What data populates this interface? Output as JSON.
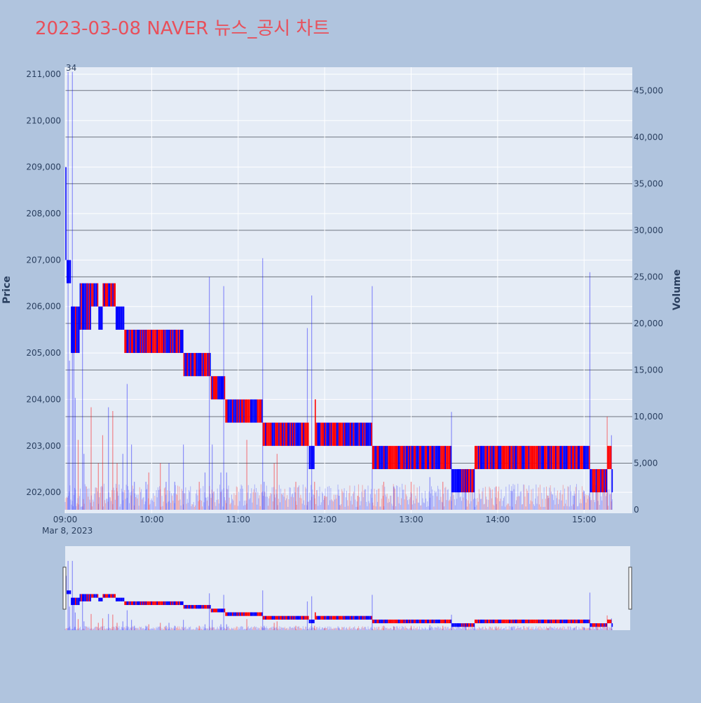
{
  "title": "2023-03-08 NAVER 뉴스_공시 차트",
  "colors": {
    "background": "#b0c4de",
    "plot_bg": "#e5ecf6",
    "title": "#e8505b",
    "up": "#ff0000",
    "down": "#0000ff",
    "axis_text": "#2a3f5f"
  },
  "chart_data": {
    "type": "candlestick",
    "xlabel": "",
    "ylabel": "Price",
    "y2label": "Volume",
    "date_label": "Mar 8, 2023",
    "x_ticks": [
      "09:00",
      "10:00",
      "11:00",
      "12:00",
      "13:00",
      "14:00",
      "15:00"
    ],
    "x_range": [
      "09:00",
      "15:31"
    ],
    "y_ticks": [
      202000,
      203000,
      204000,
      205000,
      206000,
      207000,
      208000,
      209000,
      210000,
      211000
    ],
    "y_tick_labels": [
      "202,000",
      "203,000",
      "204,000",
      "205,000",
      "206,000",
      "207,000",
      "208,000",
      "209,000",
      "210,000",
      "211,000"
    ],
    "ylim": [
      201550,
      211150
    ],
    "y2_ticks": [
      0,
      5000,
      10000,
      15000,
      20000,
      25000,
      30000,
      35000,
      40000,
      45000
    ],
    "y2_tick_labels": [
      "0",
      "5,000",
      "10,000",
      "15,000",
      "20,000",
      "25,000",
      "30,000",
      "35,000",
      "40,000",
      "45,000"
    ],
    "y2lim": [
      0,
      47500
    ],
    "annotation": "34",
    "rangeslider": true,
    "grid": true,
    "price_segments": [
      {
        "start": "09:00",
        "end": "09:01",
        "high": 209000,
        "low": 207000,
        "pattern": "down"
      },
      {
        "start": "09:01",
        "end": "09:04",
        "high": 207000,
        "low": 206500,
        "pattern": "down"
      },
      {
        "start": "09:04",
        "end": "09:06",
        "high": 206000,
        "low": 205000,
        "pattern": "down"
      },
      {
        "start": "09:06",
        "end": "09:10",
        "high": 206000,
        "low": 205000,
        "pattern": "mixed"
      },
      {
        "start": "09:10",
        "end": "09:18",
        "high": 206500,
        "low": 205500,
        "pattern": "mixed"
      },
      {
        "start": "09:18",
        "end": "09:23",
        "high": 206500,
        "low": 206000,
        "pattern": "mixed"
      },
      {
        "start": "09:23",
        "end": "09:26",
        "high": 206000,
        "low": 205500,
        "pattern": "down"
      },
      {
        "start": "09:26",
        "end": "09:35",
        "high": 206500,
        "low": 206000,
        "pattern": "mixed"
      },
      {
        "start": "09:35",
        "end": "09:41",
        "high": 206000,
        "low": 205500,
        "pattern": "down"
      },
      {
        "start": "09:41",
        "end": "10:22",
        "high": 205500,
        "low": 205000,
        "pattern": "mixed"
      },
      {
        "start": "10:22",
        "end": "10:41",
        "high": 205000,
        "low": 204500,
        "pattern": "mixed"
      },
      {
        "start": "10:41",
        "end": "10:51",
        "high": 204500,
        "low": 204000,
        "pattern": "mixed"
      },
      {
        "start": "10:51",
        "end": "11:17",
        "high": 204000,
        "low": 203500,
        "pattern": "mixed"
      },
      {
        "start": "11:17",
        "end": "11:49",
        "high": 203500,
        "low": 203000,
        "pattern": "mixed"
      },
      {
        "start": "11:49",
        "end": "11:53",
        "high": 203000,
        "low": 202500,
        "pattern": "down"
      },
      {
        "start": "11:53",
        "end": "11:54",
        "high": 204000,
        "low": 203000,
        "pattern": "up"
      },
      {
        "start": "11:54",
        "end": "12:33",
        "high": 203500,
        "low": 203000,
        "pattern": "mixed"
      },
      {
        "start": "12:33",
        "end": "13:28",
        "high": 203000,
        "low": 202500,
        "pattern": "mixed"
      },
      {
        "start": "13:28",
        "end": "13:44",
        "high": 202500,
        "low": 202000,
        "pattern": "mixed"
      },
      {
        "start": "13:44",
        "end": "15:04",
        "high": 203000,
        "low": 202500,
        "pattern": "mixed"
      },
      {
        "start": "15:04",
        "end": "15:16",
        "high": 202500,
        "low": 202000,
        "pattern": "mixed"
      },
      {
        "start": "15:16",
        "end": "15:19",
        "high": 203000,
        "low": 202500,
        "pattern": "up"
      },
      {
        "start": "15:19",
        "end": "15:20",
        "high": 202500,
        "low": 202000,
        "pattern": "down"
      }
    ],
    "volume_spikes": [
      {
        "time": "09:02",
        "value": 47000,
        "dir": "down"
      },
      {
        "time": "09:03",
        "value": 16000,
        "dir": "down"
      },
      {
        "time": "09:05",
        "value": 47000,
        "dir": "down"
      },
      {
        "time": "09:06",
        "value": 17000,
        "dir": "down"
      },
      {
        "time": "09:07",
        "value": 12000,
        "dir": "down"
      },
      {
        "time": "09:09",
        "value": 7500,
        "dir": "up"
      },
      {
        "time": "09:12",
        "value": 22000,
        "dir": "down"
      },
      {
        "time": "09:13",
        "value": 6000,
        "dir": "down"
      },
      {
        "time": "09:18",
        "value": 11000,
        "dir": "up"
      },
      {
        "time": "09:23",
        "value": 5000,
        "dir": "up"
      },
      {
        "time": "09:26",
        "value": 8000,
        "dir": "up"
      },
      {
        "time": "09:30",
        "value": 11000,
        "dir": "down"
      },
      {
        "time": "09:33",
        "value": 10600,
        "dir": "up"
      },
      {
        "time": "09:36",
        "value": 5000,
        "dir": "up"
      },
      {
        "time": "09:40",
        "value": 6000,
        "dir": "down"
      },
      {
        "time": "09:43",
        "value": 13500,
        "dir": "down"
      },
      {
        "time": "09:46",
        "value": 7000,
        "dir": "down"
      },
      {
        "time": "09:48",
        "value": 3000,
        "dir": "down"
      },
      {
        "time": "09:56",
        "value": 3000,
        "dir": "down"
      },
      {
        "time": "09:58",
        "value": 4000,
        "dir": "up"
      },
      {
        "time": "10:06",
        "value": 5000,
        "dir": "up"
      },
      {
        "time": "10:10",
        "value": 3000,
        "dir": "down"
      },
      {
        "time": "10:12",
        "value": 5000,
        "dir": "down"
      },
      {
        "time": "10:16",
        "value": 3000,
        "dir": "down"
      },
      {
        "time": "10:22",
        "value": 7000,
        "dir": "down"
      },
      {
        "time": "10:33",
        "value": 3000,
        "dir": "up"
      },
      {
        "time": "10:37",
        "value": 4000,
        "dir": "down"
      },
      {
        "time": "10:40",
        "value": 25000,
        "dir": "down"
      },
      {
        "time": "10:42",
        "value": 7000,
        "dir": "down"
      },
      {
        "time": "10:48",
        "value": 4000,
        "dir": "down"
      },
      {
        "time": "10:50",
        "value": 24000,
        "dir": "down"
      },
      {
        "time": "10:52",
        "value": 4000,
        "dir": "down"
      },
      {
        "time": "11:06",
        "value": 7500,
        "dir": "up"
      },
      {
        "time": "11:17",
        "value": 27000,
        "dir": "down"
      },
      {
        "time": "11:18",
        "value": 3000,
        "dir": "down"
      },
      {
        "time": "11:25",
        "value": 5000,
        "dir": "up"
      },
      {
        "time": "11:27",
        "value": 6000,
        "dir": "up"
      },
      {
        "time": "11:40",
        "value": 3000,
        "dir": "up"
      },
      {
        "time": "11:48",
        "value": 19500,
        "dir": "down"
      },
      {
        "time": "11:51",
        "value": 23000,
        "dir": "down"
      },
      {
        "time": "11:53",
        "value": 3000,
        "dir": "up"
      },
      {
        "time": "12:00",
        "value": 1500,
        "dir": "up"
      },
      {
        "time": "12:10",
        "value": 1500,
        "dir": "down"
      },
      {
        "time": "12:23",
        "value": 1500,
        "dir": "up"
      },
      {
        "time": "12:33",
        "value": 24000,
        "dir": "down"
      },
      {
        "time": "12:41",
        "value": 3000,
        "dir": "up"
      },
      {
        "time": "12:48",
        "value": 2500,
        "dir": "down"
      },
      {
        "time": "13:00",
        "value": 3000,
        "dir": "up"
      },
      {
        "time": "13:13",
        "value": 3500,
        "dir": "down"
      },
      {
        "time": "13:22",
        "value": 3000,
        "dir": "up"
      },
      {
        "time": "13:28",
        "value": 10500,
        "dir": "down"
      },
      {
        "time": "13:38",
        "value": 3500,
        "dir": "down"
      },
      {
        "time": "13:44",
        "value": 4500,
        "dir": "down"
      },
      {
        "time": "13:59",
        "value": 2500,
        "dir": "up"
      },
      {
        "time": "14:10",
        "value": 2000,
        "dir": "down"
      },
      {
        "time": "14:35",
        "value": 1500,
        "dir": "up"
      },
      {
        "time": "14:53",
        "value": 1500,
        "dir": "down"
      },
      {
        "time": "15:00",
        "value": 2000,
        "dir": "down"
      },
      {
        "time": "15:04",
        "value": 25500,
        "dir": "down"
      },
      {
        "time": "15:09",
        "value": 2000,
        "dir": "up"
      },
      {
        "time": "15:16",
        "value": 10000,
        "dir": "up"
      },
      {
        "time": "15:19",
        "value": 8000,
        "dir": "down"
      }
    ]
  }
}
